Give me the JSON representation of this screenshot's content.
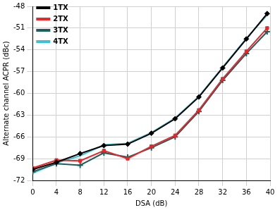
{
  "chart_data": {
    "type": "line",
    "x_label": "DSA (dB)",
    "y_label": "Alternate channel ACPR (dBc)",
    "x": [
      0,
      4,
      8,
      12,
      16,
      20,
      24,
      28,
      32,
      36,
      39.5
    ],
    "series": [
      {
        "name": "1TX",
        "color": "#000000",
        "marker": "diamond",
        "values": [
          -70.5,
          -69.5,
          -68.3,
          -67.2,
          -67.0,
          -65.5,
          -63.5,
          -60.5,
          -56.5,
          -52.5,
          -49.0
        ]
      },
      {
        "name": "2TX",
        "color": "#e8272a",
        "marker": "square",
        "values": [
          -70.3,
          -69.2,
          -69.3,
          -67.9,
          -69.0,
          -67.3,
          -65.8,
          -62.3,
          -58.0,
          -54.2,
          -51.0
        ]
      },
      {
        "name": "3TX",
        "color": "#1f5e5e",
        "marker": "plus",
        "values": [
          -70.8,
          -69.7,
          -69.9,
          -68.2,
          -68.8,
          -67.5,
          -66.0,
          -62.5,
          -58.2,
          -54.5,
          -51.5
        ]
      },
      {
        "name": "4TX",
        "color": "#3fc1d0",
        "marker": "none",
        "values": [
          -71.0,
          -69.6,
          -68.6,
          -67.1,
          -66.9,
          -65.4,
          -63.4,
          -60.4,
          -56.4,
          -52.4,
          -49.2
        ]
      }
    ],
    "xlim": [
      0,
      40
    ],
    "xticks": [
      0,
      4,
      8,
      12,
      16,
      20,
      24,
      28,
      32,
      36,
      40
    ],
    "ylim": [
      -72,
      -48
    ],
    "yticks": [
      -72,
      -69,
      -66,
      -63,
      -60,
      -57,
      -54,
      -51,
      -48
    ],
    "grid": true,
    "legend": "upper left"
  }
}
